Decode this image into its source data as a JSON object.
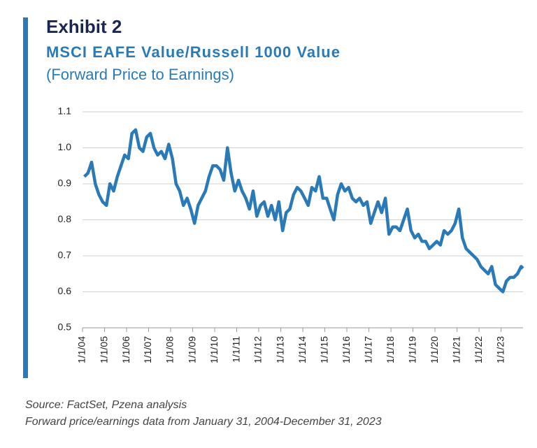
{
  "chart_data": {
    "type": "line",
    "label": "Exhibit 2",
    "title": "MSCI EAFE Value/Russell 1000 Value",
    "subtitle": "(Forward Price to Earnings)",
    "notes": [
      "Source: FactSet, Pzena analysis",
      "Forward price/earnings data from January 31, 2004-December 31, 2023"
    ],
    "x": [
      "2004-01-31",
      "2004-03-31",
      "2004-05-31",
      "2004-07-31",
      "2004-09-30",
      "2004-11-30",
      "2005-01-31",
      "2005-03-31",
      "2005-05-31",
      "2005-07-31",
      "2005-09-30",
      "2005-11-30",
      "2006-01-31",
      "2006-03-31",
      "2006-05-31",
      "2006-07-31",
      "2006-09-30",
      "2006-11-30",
      "2007-01-31",
      "2007-03-31",
      "2007-05-31",
      "2007-07-31",
      "2007-09-30",
      "2007-11-30",
      "2008-01-31",
      "2008-03-31",
      "2008-05-31",
      "2008-07-31",
      "2008-09-30",
      "2008-11-30",
      "2009-01-31",
      "2009-03-31",
      "2009-05-31",
      "2009-07-31",
      "2009-09-30",
      "2009-11-30",
      "2010-01-31",
      "2010-03-31",
      "2010-05-31",
      "2010-07-31",
      "2010-09-30",
      "2010-11-30",
      "2011-01-31",
      "2011-03-31",
      "2011-05-31",
      "2011-07-31",
      "2011-09-30",
      "2011-11-30",
      "2012-01-31",
      "2012-03-31",
      "2012-05-31",
      "2012-07-31",
      "2012-09-30",
      "2012-11-30",
      "2013-01-31",
      "2013-03-31",
      "2013-05-31",
      "2013-07-31",
      "2013-09-30",
      "2013-11-30",
      "2014-01-31",
      "2014-03-31",
      "2014-05-31",
      "2014-07-31",
      "2014-09-30",
      "2014-11-30",
      "2015-01-31",
      "2015-03-31",
      "2015-05-31",
      "2015-07-31",
      "2015-09-30",
      "2015-11-30",
      "2016-01-31",
      "2016-03-31",
      "2016-05-31",
      "2016-07-31",
      "2016-09-30",
      "2016-11-30",
      "2017-01-31",
      "2017-03-31",
      "2017-05-31",
      "2017-07-31",
      "2017-09-30",
      "2017-11-30",
      "2018-01-31",
      "2018-03-31",
      "2018-05-31",
      "2018-07-31",
      "2018-09-30",
      "2018-11-30",
      "2019-01-31",
      "2019-03-31",
      "2019-05-31",
      "2019-07-31",
      "2019-09-30",
      "2019-11-30",
      "2020-01-31",
      "2020-03-31",
      "2020-05-31",
      "2020-07-31",
      "2020-09-30",
      "2020-11-30",
      "2021-01-31",
      "2021-03-31",
      "2021-05-31",
      "2021-07-31",
      "2021-09-30",
      "2021-11-30",
      "2022-01-31",
      "2022-03-31",
      "2022-05-31",
      "2022-07-31",
      "2022-09-30",
      "2022-11-30",
      "2023-01-31",
      "2023-03-31",
      "2023-05-31",
      "2023-07-31",
      "2023-09-30",
      "2023-11-30",
      "2023-12-31"
    ],
    "series": [
      {
        "color": "#2a7ab8",
        "values": [
          0.92,
          0.93,
          0.96,
          0.9,
          0.87,
          0.85,
          0.84,
          0.9,
          0.88,
          0.92,
          0.95,
          0.98,
          0.97,
          1.04,
          1.05,
          1.0,
          0.99,
          1.03,
          1.04,
          1.0,
          0.98,
          0.99,
          0.97,
          1.01,
          0.97,
          0.9,
          0.88,
          0.84,
          0.86,
          0.83,
          0.79,
          0.84,
          0.86,
          0.88,
          0.92,
          0.95,
          0.95,
          0.94,
          0.91,
          1.0,
          0.93,
          0.88,
          0.91,
          0.88,
          0.86,
          0.83,
          0.88,
          0.81,
          0.84,
          0.85,
          0.81,
          0.84,
          0.8,
          0.85,
          0.77,
          0.82,
          0.83,
          0.87,
          0.89,
          0.88,
          0.86,
          0.84,
          0.89,
          0.88,
          0.92,
          0.86,
          0.86,
          0.83,
          0.8,
          0.87,
          0.9,
          0.88,
          0.89,
          0.86,
          0.85,
          0.86,
          0.84,
          0.85,
          0.79,
          0.82,
          0.85,
          0.82,
          0.86,
          0.76,
          0.78,
          0.78,
          0.77,
          0.8,
          0.83,
          0.77,
          0.75,
          0.76,
          0.74,
          0.74,
          0.72,
          0.73,
          0.74,
          0.73,
          0.77,
          0.76,
          0.77,
          0.79,
          0.83,
          0.75,
          0.72,
          0.71,
          0.7,
          0.69,
          0.67,
          0.66,
          0.65,
          0.67,
          0.62,
          0.61,
          0.6,
          0.63,
          0.64,
          0.64,
          0.65,
          0.67,
          0.665
        ]
      }
    ],
    "xlim": [
      "2004-01-01",
      "2023-12-31"
    ],
    "xticks": [
      {
        "value": "2004-01-01",
        "label": "1/1/04"
      },
      {
        "value": "2005-01-01",
        "label": "1/1/05"
      },
      {
        "value": "2006-01-01",
        "label": "1/1/06"
      },
      {
        "value": "2007-01-01",
        "label": "1/1/07"
      },
      {
        "value": "2008-01-01",
        "label": "1/1/08"
      },
      {
        "value": "2009-01-01",
        "label": "1/1/09"
      },
      {
        "value": "2010-01-01",
        "label": "1/1/10"
      },
      {
        "value": "2011-01-01",
        "label": "1/1/11"
      },
      {
        "value": "2012-01-01",
        "label": "1/1/12"
      },
      {
        "value": "2013-01-01",
        "label": "1/1/13"
      },
      {
        "value": "2014-01-01",
        "label": "1/1/14"
      },
      {
        "value": "2015-01-01",
        "label": "1/1/15"
      },
      {
        "value": "2016-01-01",
        "label": "1/1/16"
      },
      {
        "value": "2017-01-01",
        "label": "1/1/17"
      },
      {
        "value": "2018-01-01",
        "label": "1/1/18"
      },
      {
        "value": "2019-01-01",
        "label": "1/1/19"
      },
      {
        "value": "2020-01-01",
        "label": "1/1/20"
      },
      {
        "value": "2021-01-01",
        "label": "1/1/21"
      },
      {
        "value": "2022-01-01",
        "label": "1/1/22"
      },
      {
        "value": "2023-01-01",
        "label": "1/1/23"
      }
    ],
    "ylim": [
      0.5,
      1.1
    ],
    "yticks": [
      {
        "value": 0.5,
        "label": "0.5"
      },
      {
        "value": 0.6,
        "label": "0.6"
      },
      {
        "value": 0.7,
        "label": "0.7"
      },
      {
        "value": 0.8,
        "label": "0.8"
      },
      {
        "value": 0.9,
        "label": "0.9"
      },
      {
        "value": 1.0,
        "label": "1.0"
      },
      {
        "value": 1.1,
        "label": "1.1"
      }
    ],
    "grid": true
  }
}
